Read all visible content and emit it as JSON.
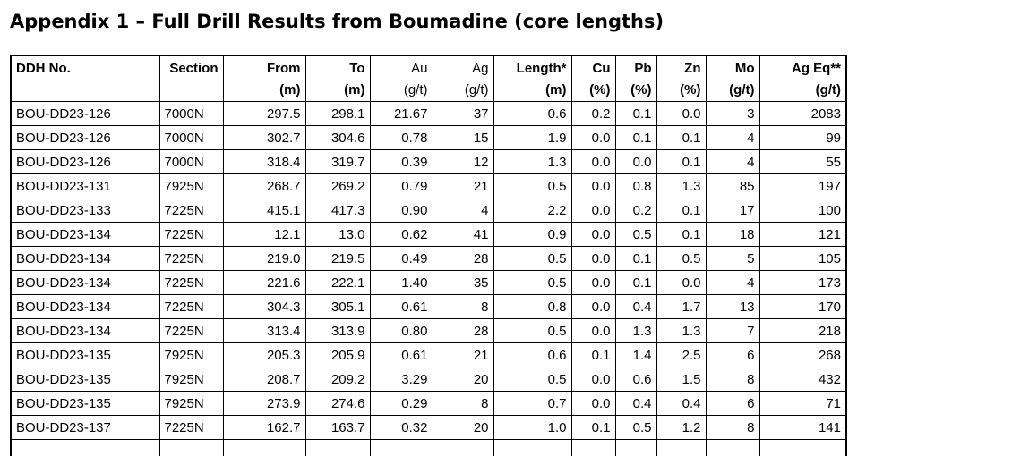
{
  "page": {
    "title": "Appendix 1 – Full Drill Results from Boumadine (core lengths)"
  },
  "colors": {
    "text": "#000000",
    "border": "#000000",
    "background": "#ffffff"
  },
  "table": {
    "columns": [
      {
        "key": "ddh",
        "label": "DDH No.",
        "unit": "",
        "bold": true,
        "header_align": "left",
        "cell_align": "left"
      },
      {
        "key": "section",
        "label": "Section",
        "unit": "",
        "bold": true,
        "header_align": "right",
        "cell_align": "left"
      },
      {
        "key": "from",
        "label": "From",
        "unit": "(m)",
        "bold": true,
        "header_align": "right",
        "cell_align": "right"
      },
      {
        "key": "to",
        "label": "To",
        "unit": "(m)",
        "bold": true,
        "header_align": "right",
        "cell_align": "right"
      },
      {
        "key": "au",
        "label": "Au",
        "unit": "(g/t)",
        "bold": false,
        "header_align": "right",
        "cell_align": "right"
      },
      {
        "key": "ag",
        "label": "Ag",
        "unit": "(g/t)",
        "bold": false,
        "header_align": "right",
        "cell_align": "right"
      },
      {
        "key": "length",
        "label": "Length*",
        "unit": "(m)",
        "bold": true,
        "header_align": "right",
        "cell_align": "right"
      },
      {
        "key": "cu",
        "label": "Cu",
        "unit": "(%)",
        "bold": true,
        "header_align": "right",
        "cell_align": "right"
      },
      {
        "key": "pb",
        "label": "Pb",
        "unit": "(%)",
        "bold": true,
        "header_align": "right",
        "cell_align": "right"
      },
      {
        "key": "zn",
        "label": "Zn",
        "unit": "(%)",
        "bold": true,
        "header_align": "right",
        "cell_align": "right"
      },
      {
        "key": "mo",
        "label": "Mo",
        "unit": "(g/t)",
        "bold": true,
        "header_align": "right",
        "cell_align": "right"
      },
      {
        "key": "ageq",
        "label": "Ag Eq**",
        "unit": "(g/t)",
        "bold": true,
        "header_align": "right",
        "cell_align": "right"
      }
    ],
    "rows": [
      [
        "BOU-DD23-126",
        "7000N",
        "297.5",
        "298.1",
        "21.67",
        "37",
        "0.6",
        "0.2",
        "0.1",
        "0.0",
        "3",
        "2083"
      ],
      [
        "BOU-DD23-126",
        "7000N",
        "302.7",
        "304.6",
        "0.78",
        "15",
        "1.9",
        "0.0",
        "0.1",
        "0.1",
        "4",
        "99"
      ],
      [
        "BOU-DD23-126",
        "7000N",
        "318.4",
        "319.7",
        "0.39",
        "12",
        "1.3",
        "0.0",
        "0.0",
        "0.1",
        "4",
        "55"
      ],
      [
        "BOU-DD23-131",
        "7925N",
        "268.7",
        "269.2",
        "0.79",
        "21",
        "0.5",
        "0.0",
        "0.8",
        "1.3",
        "85",
        "197"
      ],
      [
        "BOU-DD23-133",
        "7225N",
        "415.1",
        "417.3",
        "0.90",
        "4",
        "2.2",
        "0.0",
        "0.2",
        "0.1",
        "17",
        "100"
      ],
      [
        "BOU-DD23-134",
        "7225N",
        "12.1",
        "13.0",
        "0.62",
        "41",
        "0.9",
        "0.0",
        "0.5",
        "0.1",
        "18",
        "121"
      ],
      [
        "BOU-DD23-134",
        "7225N",
        "219.0",
        "219.5",
        "0.49",
        "28",
        "0.5",
        "0.0",
        "0.1",
        "0.5",
        "5",
        "105"
      ],
      [
        "BOU-DD23-134",
        "7225N",
        "221.6",
        "222.1",
        "1.40",
        "35",
        "0.5",
        "0.0",
        "0.1",
        "0.0",
        "4",
        "173"
      ],
      [
        "BOU-DD23-134",
        "7225N",
        "304.3",
        "305.1",
        "0.61",
        "8",
        "0.8",
        "0.0",
        "0.4",
        "1.7",
        "13",
        "170"
      ],
      [
        "BOU-DD23-134",
        "7225N",
        "313.4",
        "313.9",
        "0.80",
        "28",
        "0.5",
        "0.0",
        "1.3",
        "1.3",
        "7",
        "218"
      ],
      [
        "BOU-DD23-135",
        "7925N",
        "205.3",
        "205.9",
        "0.61",
        "21",
        "0.6",
        "0.1",
        "1.4",
        "2.5",
        "6",
        "268"
      ],
      [
        "BOU-DD23-135",
        "7925N",
        "208.7",
        "209.2",
        "3.29",
        "20",
        "0.5",
        "0.0",
        "0.6",
        "1.5",
        "8",
        "432"
      ],
      [
        "BOU-DD23-135",
        "7925N",
        "273.9",
        "274.6",
        "0.29",
        "8",
        "0.7",
        "0.0",
        "0.4",
        "0.4",
        "6",
        "71"
      ],
      [
        "BOU-DD23-137",
        "7225N",
        "162.7",
        "163.7",
        "0.32",
        "20",
        "1.0",
        "0.1",
        "0.5",
        "1.2",
        "8",
        "141"
      ]
    ],
    "partial_row_visible": true
  }
}
